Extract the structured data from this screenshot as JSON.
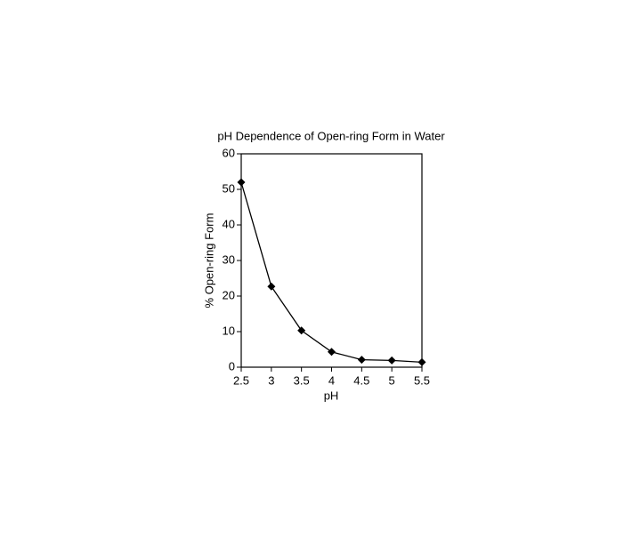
{
  "chart_data": {
    "type": "line",
    "title": "pH Dependence of Open-ring Form in Water",
    "x_label": "pH",
    "y_label": "% Open-ring Form",
    "x": [
      2.5,
      3,
      3.5,
      4,
      4.5,
      5,
      5.5
    ],
    "series": [
      {
        "name": "% Open-ring Form",
        "color": "#000000",
        "values": [
          52,
          22.7,
          10.3,
          4.3,
          2.1,
          1.9,
          1.4
        ]
      }
    ],
    "xlim": [
      2.5,
      5.5
    ],
    "xticks": [
      2.5,
      3,
      3.5,
      4,
      4.5,
      5,
      5.5
    ],
    "ylim": [
      0,
      60
    ],
    "yticks": [
      0,
      10,
      20,
      30,
      40,
      50,
      60
    ],
    "grid": false
  }
}
